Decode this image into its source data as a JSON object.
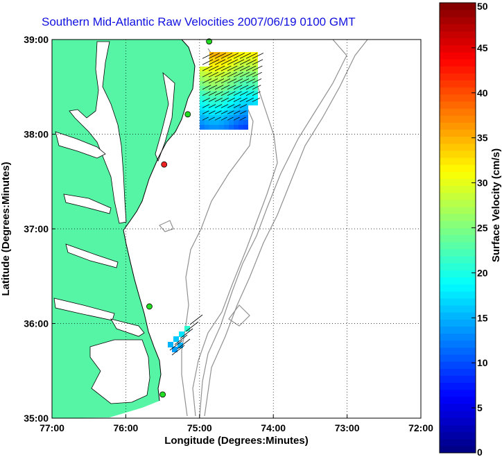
{
  "title": "Southern Mid-Atlantic Raw Velocities 2007/06/19 0100 GMT",
  "map": {
    "x_ticks": [
      "77:00",
      "76:00",
      "75:00",
      "74:00",
      "73:00",
      "72:00"
    ],
    "y_ticks": [
      "39:00",
      "38:00",
      "37:00",
      "36:00",
      "35:00"
    ],
    "xlabel": "Longitude (Degrees:Minutes)",
    "ylabel": "Latitude (Degrees:Minutes)",
    "lon_range": [
      -77,
      -72
    ],
    "lat_range": [
      35,
      39
    ],
    "grid": "dotted",
    "land_color": "#55f5a5",
    "bathymetry_color": "#909090"
  },
  "stations": [
    {
      "lat": 38.98,
      "lon": -74.87,
      "color": "#22dd22"
    },
    {
      "lat": 38.21,
      "lon": -75.16,
      "color": "#22dd22"
    },
    {
      "lat": 37.68,
      "lon": -75.48,
      "color": "#ee2222"
    },
    {
      "lat": 36.18,
      "lon": -75.68,
      "color": "#22dd22"
    },
    {
      "lat": 35.25,
      "lon": -75.5,
      "color": "#22dd22"
    }
  ],
  "colorbar": {
    "label": "Surface Velocity (cm/s)",
    "ticks": [
      "0",
      "5",
      "10",
      "15",
      "20",
      "25",
      "30",
      "35",
      "40",
      "45",
      "50"
    ],
    "range": [
      0,
      50
    ],
    "colormap": "jet"
  }
}
